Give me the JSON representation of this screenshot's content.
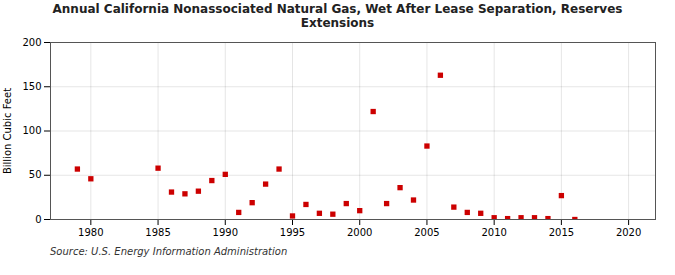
{
  "chart_data": {
    "type": "scatter",
    "title": "Annual California Nonassociated Natural Gas, Wet After Lease Separation, Reserves\nExtensions",
    "ylabel": "Billion Cubic Feet",
    "source": "Source: U.S. Energy Information Administration",
    "color": "#cc0000",
    "marker": "square",
    "grid": true,
    "xlim": [
      1977,
      2022
    ],
    "ylim": [
      0,
      200
    ],
    "xticks": [
      1980,
      1985,
      1990,
      1995,
      2000,
      2005,
      2010,
      2015,
      2020
    ],
    "yticks": [
      0,
      50,
      100,
      150,
      200
    ],
    "x": [
      1979,
      1980,
      1985,
      1986,
      1987,
      1988,
      1989,
      1990,
      1991,
      1992,
      1993,
      1994,
      1995,
      1996,
      1997,
      1998,
      1999,
      2000,
      2001,
      2002,
      2003,
      2004,
      2005,
      2006,
      2007,
      2008,
      2009,
      2010,
      2011,
      2012,
      2013,
      2014,
      2015,
      2016
    ],
    "values": [
      57,
      46,
      58,
      31,
      29,
      32,
      44,
      51,
      8,
      19,
      40,
      57,
      4,
      17,
      7,
      6,
      18,
      10,
      122,
      18,
      36,
      22,
      83,
      163,
      14,
      8,
      7,
      2,
      1,
      2,
      2,
      1,
      27,
      0
    ]
  }
}
